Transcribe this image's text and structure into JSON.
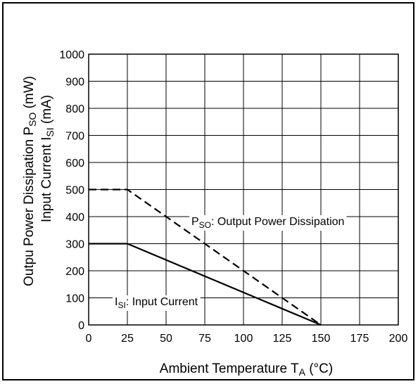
{
  "chart_data": {
    "type": "line",
    "xlabel": "Ambient Temperature T",
    "xlabel_sub": "A",
    "xlabel_unit": " (°C)",
    "ylabel_line1_pre": "Outpu Power Dissipation P",
    "ylabel_line1_sub": "SO",
    "ylabel_line1_post": " (mW)",
    "ylabel_line2_pre": "Input Current I",
    "ylabel_line2_sub": "SI",
    "ylabel_line2_post": " (mA)",
    "xlim": [
      0,
      200
    ],
    "ylim": [
      0,
      1000
    ],
    "xticks": [
      0,
      25,
      50,
      75,
      100,
      125,
      150,
      175,
      200
    ],
    "yticks": [
      0,
      100,
      200,
      300,
      400,
      500,
      600,
      700,
      800,
      900,
      1000
    ],
    "grid": true,
    "series": [
      {
        "name": "PSO: Output Power Dissipation",
        "style": "dashed",
        "x": [
          0,
          25,
          150
        ],
        "y": [
          500,
          500,
          0
        ]
      },
      {
        "name": "ISI: Input Current",
        "style": "solid",
        "x": [
          0,
          25,
          150
        ],
        "y": [
          300,
          300,
          0
        ]
      }
    ],
    "annotations": [
      {
        "pre": "P",
        "sub": "SO",
        "post": ": Output Power Dissipation"
      },
      {
        "pre": "I",
        "sub": "SI",
        "post": ": Input Current"
      }
    ]
  }
}
